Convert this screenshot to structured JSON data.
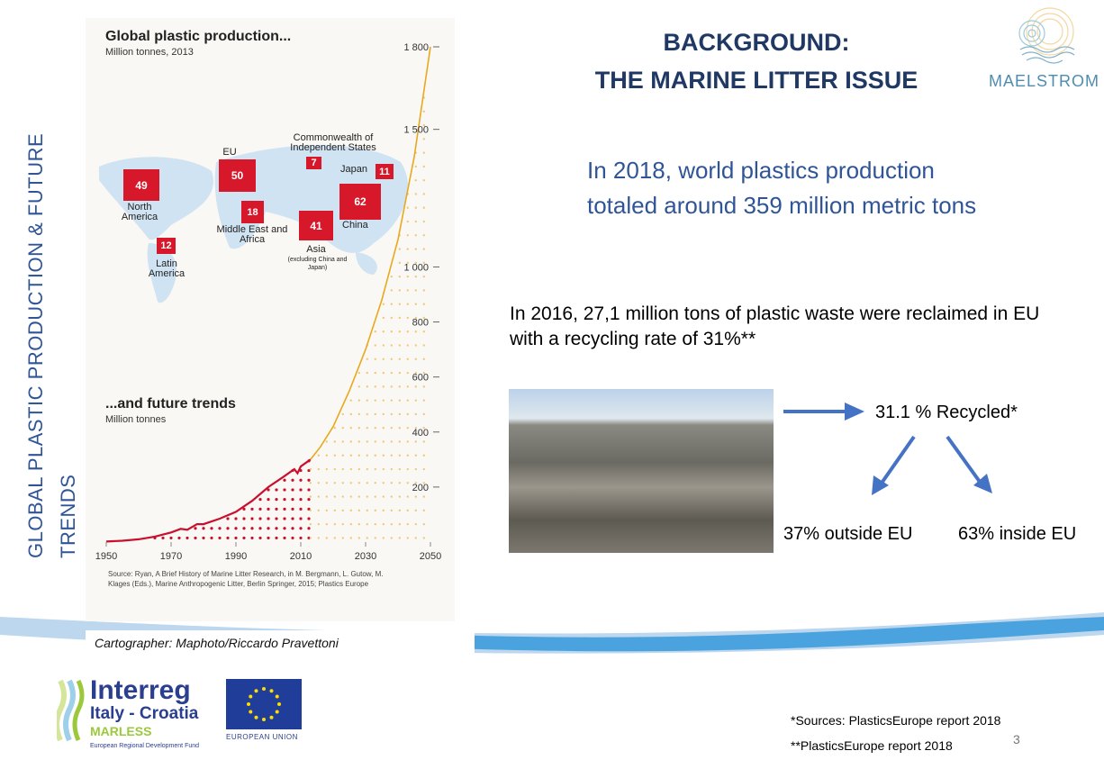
{
  "slide": {
    "side_title": "GLOBAL PLASTIC PRODUCTION &  FUTURE TRENDS",
    "title_line1": "BACKGROUND:",
    "title_line2": "THE MARINE LITTER ISSUE",
    "paragraph1": "In 2018, world plastics production totaled around 359 million metric tons",
    "paragraph2": "In 2016, 27,1 million tons of plastic waste were reclaimed in EU with a recycling rate of 31%**",
    "recycled": "31.1 % Recycled*",
    "outside_eu": "37% outside EU",
    "inside_eu": "63% inside EU",
    "caption": "Cartographer: Maphoto/Riccardo Pravettoni",
    "source1": "*Sources: PlasticsEurope report 2018",
    "source2": "**PlasticsEurope report 2018",
    "page_number": "3",
    "maelstrom_logo": "MAELSTROM",
    "interreg": {
      "line1": "Interreg",
      "line2": "Italy - Croatia",
      "line3": "MARLESS",
      "line4": "European Regional Development Fund"
    },
    "eu_label": "EUROPEAN UNION"
  },
  "infographic": {
    "title": "Global plastic production...",
    "subtitle": "Million tonnes, 2013",
    "regions": [
      {
        "name": "North America",
        "value": "49"
      },
      {
        "name": "EU",
        "value": "50"
      },
      {
        "name": "Commonwealth of Independent States",
        "value": "7"
      },
      {
        "name": "Japan",
        "value": "11"
      },
      {
        "name": "Middle East and Africa",
        "value": "18"
      },
      {
        "name": "China",
        "value": "62"
      },
      {
        "name": "Asia",
        "value": "41"
      },
      {
        "name": "Latin America",
        "value": "12"
      }
    ],
    "asia_note": "(excluding China and Japan)",
    "source": "Source: Ryan, A Brief History of Marine Litter Research, in M. Bergmann, L. Gutow, M. Klages (Eds.), Marine Anthropogenic Litter, Berlin Springer, 2015; Plastics Europe"
  },
  "chart_data": {
    "type": "line",
    "title": "...and future trends",
    "ylabel": "Million tonnes",
    "xlim": [
      1950,
      2050
    ],
    "ylim": [
      0,
      1800
    ],
    "x_ticks": [
      "1950",
      "1970",
      "1990",
      "2010",
      "2030",
      "2050"
    ],
    "y_ticks": [
      "200",
      "400",
      "600",
      "800",
      "1 000",
      "1 500",
      "1 800"
    ],
    "series": [
      {
        "name": "historical",
        "color": "#c8102e",
        "x": [
          1950,
          1955,
          1960,
          1965,
          1970,
          1973,
          1975,
          1978,
          1980,
          1985,
          1990,
          1995,
          2000,
          2005,
          2008,
          2009,
          2010,
          2013
        ],
        "y": [
          2,
          5,
          10,
          20,
          35,
          48,
          45,
          65,
          65,
          85,
          110,
          150,
          200,
          240,
          265,
          250,
          275,
          300
        ]
      },
      {
        "name": "projection",
        "color": "#e8a820",
        "x": [
          2013,
          2016,
          2020,
          2025,
          2030,
          2035,
          2040,
          2045,
          2050
        ],
        "y": [
          300,
          345,
          420,
          550,
          700,
          880,
          1100,
          1400,
          1800
        ]
      }
    ]
  },
  "colors": {
    "accent": "#2f5597",
    "title": "#1f3864",
    "red": "#d7182a",
    "arrow": "#4472c4"
  }
}
